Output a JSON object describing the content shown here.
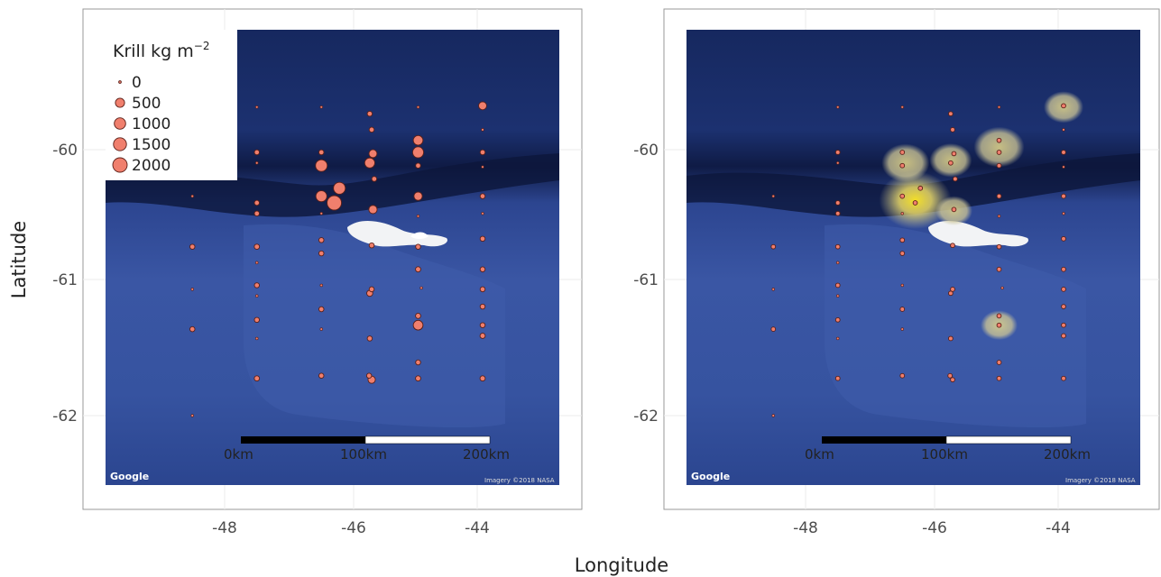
{
  "figure": {
    "xlabel": "Longitude",
    "ylabel": "Latitude"
  },
  "map_labels": {
    "google": "Google",
    "credit": "Imagery ©2018 NASA",
    "scale": [
      "0km",
      "100km",
      "200km"
    ]
  },
  "legend": {
    "title": "Krill kg m",
    "title_exp": "−2",
    "entries": [
      "0",
      "500",
      "1000",
      "1500",
      "2000"
    ],
    "sizes": [
      0,
      500,
      1000,
      1500,
      2000
    ]
  },
  "colors": {
    "point_fill": "#f07f6d",
    "point_stroke": "#5a1f18",
    "ocean_deep": "#1a2d6b",
    "ocean_shelf": "#3d5aa8",
    "panel_border": "#999999",
    "density_outer": "#d9cf7a",
    "density_inner": "#f5e03a"
  },
  "chart_data": [
    {
      "type": "scatter",
      "panel": "left",
      "xlim": [
        -49.8,
        -42.5
      ],
      "ylim": [
        -62.55,
        -59.1
      ],
      "x_ticks": [
        "-48",
        "-46",
        "-44"
      ],
      "y_ticks": [
        "-60",
        "-61",
        "-62"
      ],
      "size_variable": "Krill kg m−2",
      "points": [
        {
          "x": -48.5,
          "y": -60.35,
          "v": 0
        },
        {
          "x": -48.5,
          "y": -60.73,
          "v": 20
        },
        {
          "x": -48.5,
          "y": -61.05,
          "v": 0
        },
        {
          "x": -48.5,
          "y": -61.35,
          "v": 20
        },
        {
          "x": -48.5,
          "y": -62.0,
          "v": 0
        },
        {
          "x": -47.5,
          "y": -59.68,
          "v": 0
        },
        {
          "x": -47.5,
          "y": -60.02,
          "v": 20
        },
        {
          "x": -47.5,
          "y": -60.1,
          "v": 0
        },
        {
          "x": -47.5,
          "y": -60.4,
          "v": 20
        },
        {
          "x": -47.5,
          "y": -60.48,
          "v": 20
        },
        {
          "x": -47.5,
          "y": -60.73,
          "v": 30
        },
        {
          "x": -47.5,
          "y": -60.85,
          "v": 0
        },
        {
          "x": -47.5,
          "y": -61.02,
          "v": 20
        },
        {
          "x": -47.5,
          "y": -61.1,
          "v": 0
        },
        {
          "x": -47.5,
          "y": -61.28,
          "v": 20
        },
        {
          "x": -47.5,
          "y": -61.42,
          "v": 0
        },
        {
          "x": -47.5,
          "y": -61.72,
          "v": 30
        },
        {
          "x": -46.5,
          "y": -59.68,
          "v": 0
        },
        {
          "x": -46.5,
          "y": -60.02,
          "v": 20
        },
        {
          "x": -46.5,
          "y": -60.12,
          "v": 1100
        },
        {
          "x": -46.5,
          "y": -60.35,
          "v": 900
        },
        {
          "x": -46.5,
          "y": -60.48,
          "v": 0
        },
        {
          "x": -46.5,
          "y": -60.68,
          "v": 20
        },
        {
          "x": -46.5,
          "y": -60.78,
          "v": 20
        },
        {
          "x": -46.5,
          "y": -61.02,
          "v": 0
        },
        {
          "x": -46.5,
          "y": -61.2,
          "v": 20
        },
        {
          "x": -46.5,
          "y": -61.35,
          "v": 0
        },
        {
          "x": -46.5,
          "y": -61.7,
          "v": 20
        },
        {
          "x": -46.3,
          "y": -60.4,
          "v": 2000
        },
        {
          "x": -46.22,
          "y": -60.29,
          "v": 1150
        },
        {
          "x": -45.75,
          "y": -59.73,
          "v": 20
        },
        {
          "x": -45.72,
          "y": -59.85,
          "v": 20
        },
        {
          "x": -45.75,
          "y": -60.1,
          "v": 700
        },
        {
          "x": -45.7,
          "y": -60.03,
          "v": 300
        },
        {
          "x": -45.68,
          "y": -60.22,
          "v": 20
        },
        {
          "x": -45.7,
          "y": -60.45,
          "v": 350
        },
        {
          "x": -45.72,
          "y": -60.72,
          "v": 20
        },
        {
          "x": -45.75,
          "y": -61.08,
          "v": 80
        },
        {
          "x": -45.72,
          "y": -61.05,
          "v": 20
        },
        {
          "x": -45.75,
          "y": -61.42,
          "v": 20
        },
        {
          "x": -45.72,
          "y": -61.73,
          "v": 200
        },
        {
          "x": -45.76,
          "y": -61.7,
          "v": 20
        },
        {
          "x": -45.0,
          "y": -59.68,
          "v": 0
        },
        {
          "x": -45.0,
          "y": -59.93,
          "v": 600
        },
        {
          "x": -45.0,
          "y": -60.02,
          "v": 900
        },
        {
          "x": -45.0,
          "y": -60.12,
          "v": 20
        },
        {
          "x": -45.0,
          "y": -60.35,
          "v": 350
        },
        {
          "x": -45.0,
          "y": -60.5,
          "v": 0
        },
        {
          "x": -45.0,
          "y": -60.73,
          "v": 20
        },
        {
          "x": -45.0,
          "y": -60.9,
          "v": 30
        },
        {
          "x": -44.95,
          "y": -61.04,
          "v": 0
        },
        {
          "x": -45.0,
          "y": -61.25,
          "v": 30
        },
        {
          "x": -45.0,
          "y": -61.32,
          "v": 600
        },
        {
          "x": -45.0,
          "y": -61.6,
          "v": 20
        },
        {
          "x": -45.0,
          "y": -61.72,
          "v": 30
        },
        {
          "x": -44.0,
          "y": -59.67,
          "v": 300
        },
        {
          "x": -44.0,
          "y": -59.85,
          "v": 0
        },
        {
          "x": -44.0,
          "y": -60.02,
          "v": 20
        },
        {
          "x": -44.0,
          "y": -60.13,
          "v": 0
        },
        {
          "x": -44.0,
          "y": -60.35,
          "v": 20
        },
        {
          "x": -44.0,
          "y": -60.48,
          "v": 0
        },
        {
          "x": -44.0,
          "y": -60.67,
          "v": 20
        },
        {
          "x": -44.0,
          "y": -60.9,
          "v": 20
        },
        {
          "x": -44.0,
          "y": -61.05,
          "v": 20
        },
        {
          "x": -44.0,
          "y": -61.18,
          "v": 20
        },
        {
          "x": -44.0,
          "y": -61.32,
          "v": 20
        },
        {
          "x": -44.0,
          "y": -61.4,
          "v": 30
        },
        {
          "x": -44.0,
          "y": -61.72,
          "v": 30
        }
      ]
    },
    {
      "type": "scatter",
      "panel": "right",
      "overlay": "kernel density of krill",
      "xlim": [
        -49.8,
        -42.5
      ],
      "ylim": [
        -62.55,
        -59.1
      ],
      "x_ticks": [
        "-48",
        "-46",
        "-44"
      ],
      "y_ticks": [
        "-60",
        "-61",
        "-62"
      ],
      "density_hotspots": [
        {
          "x": -46.3,
          "y": -60.38,
          "intensity": 1.0
        },
        {
          "x": -46.45,
          "y": -60.1,
          "intensity": 0.55
        },
        {
          "x": -45.75,
          "y": -60.08,
          "intensity": 0.45
        },
        {
          "x": -45.0,
          "y": -59.98,
          "intensity": 0.6
        },
        {
          "x": -44.0,
          "y": -59.68,
          "intensity": 0.4
        },
        {
          "x": -45.7,
          "y": -60.46,
          "intensity": 0.35
        },
        {
          "x": -45.0,
          "y": -61.32,
          "intensity": 0.35
        }
      ]
    }
  ]
}
